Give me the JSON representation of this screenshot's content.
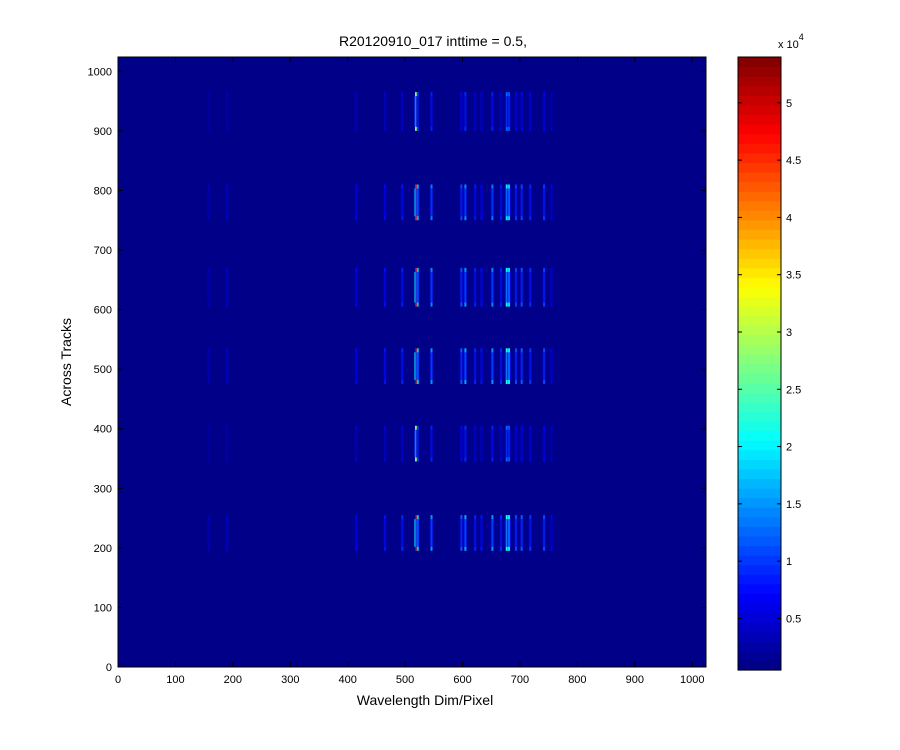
{
  "chart_data": {
    "type": "heatmap",
    "title": "R20120910_017 inttime = 0.5,",
    "xlabel": "Wavelength Dim/Pixel",
    "ylabel": "Across Tracks",
    "xlim": [
      0,
      1024
    ],
    "ylim": [
      0,
      1024
    ],
    "xticks": [
      0,
      100,
      200,
      300,
      400,
      500,
      600,
      700,
      800,
      900,
      1000
    ],
    "yticks": [
      0,
      100,
      200,
      300,
      400,
      500,
      600,
      700,
      800,
      900,
      1000
    ],
    "colormap": "jet",
    "color_range": [
      500,
      54000
    ],
    "colorbar": {
      "ticks": [
        0.5,
        1,
        1.5,
        2,
        2.5,
        3,
        3.5,
        4,
        4.5,
        5
      ],
      "tick_labels": [
        "0.5",
        "1",
        "1.5",
        "2",
        "2.5",
        "3",
        "3.5",
        "4",
        "4.5",
        "5"
      ],
      "exponent_label": "x 10",
      "exponent_power": "4"
    },
    "background_value": 1000,
    "tracks": [
      {
        "y_min": 195,
        "y_max": 255,
        "strength": 1.0
      },
      {
        "y_min": 345,
        "y_max": 405,
        "strength": 0.55
      },
      {
        "y_min": 475,
        "y_max": 535,
        "strength": 1.0
      },
      {
        "y_min": 605,
        "y_max": 670,
        "strength": 0.95
      },
      {
        "y_min": 750,
        "y_max": 810,
        "strength": 0.9
      },
      {
        "y_min": 900,
        "y_max": 965,
        "strength": 0.55
      }
    ],
    "spectral_lines": [
      {
        "x": 158,
        "peak": 4000
      },
      {
        "x": 190,
        "peak": 5000
      },
      {
        "x": 415,
        "peak": 7000
      },
      {
        "x": 465,
        "peak": 8000
      },
      {
        "x": 495,
        "peak": 9000
      },
      {
        "x": 519,
        "peak": 52000
      },
      {
        "x": 522,
        "peak": 18000
      },
      {
        "x": 546,
        "peak": 15000
      },
      {
        "x": 598,
        "peak": 12000
      },
      {
        "x": 605,
        "peak": 16000
      },
      {
        "x": 622,
        "peak": 9000
      },
      {
        "x": 633,
        "peak": 8000
      },
      {
        "x": 652,
        "peak": 15000
      },
      {
        "x": 667,
        "peak": 9000
      },
      {
        "x": 677,
        "peak": 22000
      },
      {
        "x": 681,
        "peak": 20000
      },
      {
        "x": 693,
        "peak": 11000
      },
      {
        "x": 703,
        "peak": 12000
      },
      {
        "x": 718,
        "peak": 10000
      },
      {
        "x": 742,
        "peak": 11000
      },
      {
        "x": 755,
        "peak": 6000
      }
    ]
  }
}
